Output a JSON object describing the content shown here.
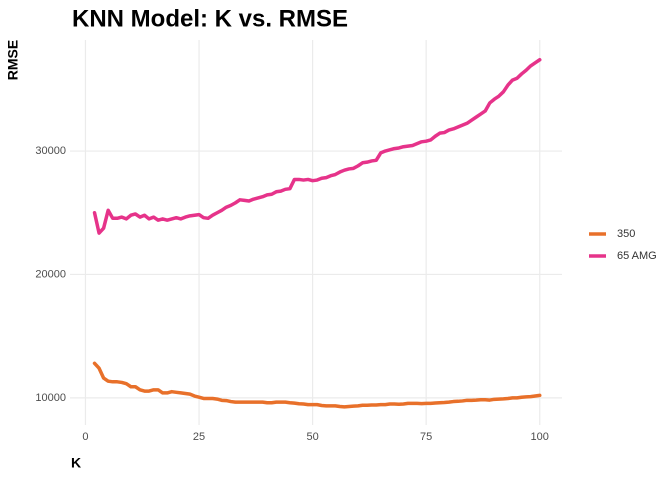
{
  "chart_data": {
    "type": "line",
    "title": "KNN Model: K vs. RMSE",
    "x_label": "K",
    "y_label": "RMSE",
    "x": [
      2,
      3,
      4,
      5,
      6,
      7,
      8,
      9,
      10,
      11,
      12,
      13,
      14,
      15,
      16,
      17,
      18,
      19,
      20,
      21,
      22,
      23,
      24,
      25,
      26,
      27,
      28,
      29,
      30,
      31,
      32,
      33,
      34,
      35,
      36,
      37,
      38,
      39,
      40,
      41,
      42,
      43,
      44,
      45,
      46,
      47,
      48,
      49,
      50,
      51,
      52,
      53,
      54,
      55,
      56,
      57,
      58,
      59,
      60,
      61,
      62,
      63,
      64,
      65,
      66,
      67,
      68,
      69,
      70,
      71,
      72,
      73,
      74,
      75,
      76,
      77,
      78,
      79,
      80,
      81,
      82,
      83,
      84,
      85,
      86,
      87,
      88,
      89,
      90,
      91,
      92,
      93,
      94,
      95,
      96,
      97,
      98,
      99,
      100
    ],
    "series": [
      {
        "name": "350",
        "color": "#e8702a",
        "values": [
          12800,
          12400,
          11600,
          11350,
          11300,
          11300,
          11250,
          11150,
          10900,
          10900,
          10650,
          10550,
          10550,
          10650,
          10650,
          10400,
          10400,
          10500,
          10450,
          10400,
          10350,
          10300,
          10150,
          10050,
          9950,
          9950,
          9950,
          9900,
          9800,
          9780,
          9700,
          9650,
          9650,
          9650,
          9650,
          9650,
          9650,
          9650,
          9600,
          9600,
          9650,
          9650,
          9650,
          9600,
          9570,
          9520,
          9500,
          9450,
          9450,
          9450,
          9380,
          9350,
          9350,
          9350,
          9300,
          9270,
          9300,
          9330,
          9350,
          9400,
          9400,
          9420,
          9420,
          9450,
          9450,
          9500,
          9500,
          9480,
          9500,
          9550,
          9550,
          9550,
          9530,
          9550,
          9550,
          9580,
          9600,
          9620,
          9650,
          9700,
          9720,
          9750,
          9800,
          9800,
          9820,
          9850,
          9850,
          9820,
          9880,
          9900,
          9920,
          9950,
          10000,
          10000,
          10050,
          10080,
          10100,
          10150,
          10200
        ]
      },
      {
        "name": "65 AMG",
        "color": "#e6338a",
        "values": [
          25000,
          23350,
          23750,
          25200,
          24550,
          24550,
          24650,
          24500,
          24800,
          24900,
          24650,
          24800,
          24500,
          24650,
          24400,
          24500,
          24400,
          24500,
          24600,
          24500,
          24650,
          24750,
          24800,
          24850,
          24600,
          24550,
          24800,
          25000,
          25200,
          25450,
          25600,
          25800,
          26050,
          26000,
          25950,
          26100,
          26200,
          26300,
          26450,
          26500,
          26700,
          26750,
          26900,
          26950,
          27700,
          27700,
          27650,
          27700,
          27600,
          27650,
          27800,
          27850,
          28000,
          28100,
          28300,
          28450,
          28550,
          28600,
          28800,
          29050,
          29100,
          29200,
          29250,
          29850,
          30000,
          30100,
          30200,
          30250,
          30350,
          30400,
          30450,
          30600,
          30750,
          30800,
          30900,
          31200,
          31450,
          31500,
          31700,
          31800,
          31950,
          32100,
          32250,
          32500,
          32750,
          33000,
          33250,
          33900,
          34200,
          34450,
          34800,
          35350,
          35750,
          35900,
          36250,
          36550,
          36900,
          37150,
          37400
        ]
      }
    ],
    "xlim": [
      -3.4,
      104.9
    ],
    "xticks": [
      0,
      25,
      50,
      75,
      100
    ],
    "ylim": [
      7800,
      39000
    ],
    "yticks": [
      10000,
      20000,
      30000
    ],
    "grid": true
  }
}
